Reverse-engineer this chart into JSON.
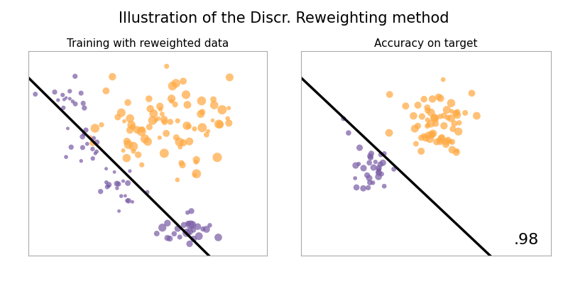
{
  "title": "Illustration of the Discr. Reweighting method",
  "subtitle_left": "Training with reweighted data",
  "subtitle_right": "Accuracy on target",
  "accuracy_text": ".98",
  "orange_color": "#FFAA44",
  "purple_color": "#7B5EA7",
  "line_color": "black",
  "line_lw": 2.5,
  "bg_color": "white",
  "seed": 7,
  "title_fontsize": 15,
  "subtitle_fontsize": 11,
  "accuracy_fontsize": 16,
  "alpha": 0.72
}
